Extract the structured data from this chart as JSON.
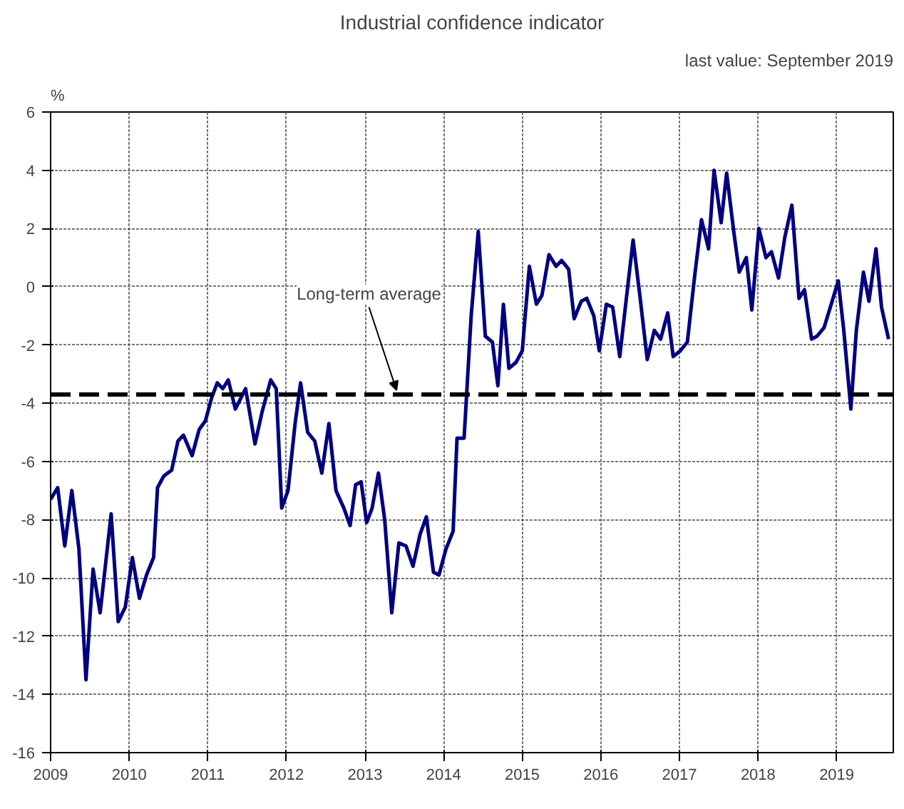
{
  "chart_data": {
    "type": "line",
    "title": "Industrial confidence indicator",
    "ylabel": "%",
    "annotations": [
      "last value: September 2019",
      {
        "text": "Long-term average",
        "x": 2013.4,
        "y": -3.7
      }
    ],
    "x": [
      2009.0,
      2009.09,
      2009.18,
      2009.27,
      2009.36,
      2009.45,
      2009.54,
      2009.63,
      2009.77,
      2009.86,
      2009.95,
      2010.04,
      2010.13,
      2010.22,
      2010.31,
      2010.36,
      2010.44,
      2010.54,
      2010.62,
      2010.69,
      2010.8,
      2010.89,
      2010.97,
      2011.05,
      2011.12,
      2011.19,
      2011.26,
      2011.35,
      2011.48,
      2011.6,
      2011.69,
      2011.8,
      2011.87,
      2011.94,
      2012.02,
      2012.11,
      2012.18,
      2012.27,
      2012.36,
      2012.45,
      2012.54,
      2012.63,
      2012.73,
      2012.81,
      2012.88,
      2012.95,
      2013.02,
      2013.09,
      2013.17,
      2013.25,
      2013.34,
      2013.43,
      2013.52,
      2013.61,
      2013.7,
      2013.78,
      2013.87,
      2013.94,
      2014.03,
      2014.12,
      2014.17,
      2014.26,
      2014.35,
      2014.44,
      2014.53,
      2014.62,
      2014.69,
      2014.76,
      2014.83,
      2014.92,
      2015.0,
      2015.09,
      2015.18,
      2015.25,
      2015.34,
      2015.43,
      2015.5,
      2015.59,
      2015.66,
      2015.75,
      2015.82,
      2015.91,
      2015.98,
      2016.07,
      2016.15,
      2016.24,
      2016.32,
      2016.41,
      2016.5,
      2016.59,
      2016.68,
      2016.76,
      2016.85,
      2016.92,
      2017.01,
      2017.1,
      2017.19,
      2017.28,
      2017.37,
      2017.44,
      2017.53,
      2017.6,
      2017.69,
      2017.76,
      2017.85,
      2017.92,
      2018.01,
      2018.1,
      2018.17,
      2018.26,
      2018.34,
      2018.43,
      2018.52,
      2018.59,
      2018.68,
      2018.75,
      2018.84,
      2018.93,
      2019.02,
      2019.09,
      2019.18,
      2019.25,
      2019.34,
      2019.41,
      2019.5,
      2019.57,
      2019.66
    ],
    "series": [
      {
        "color": "#000080",
        "values": [
          -7.3,
          -6.9,
          -8.9,
          -7.0,
          -9.0,
          -13.5,
          -9.7,
          -11.2,
          -7.8,
          -11.5,
          -11.0,
          -9.3,
          -10.7,
          -9.9,
          -9.3,
          -6.9,
          -6.5,
          -6.3,
          -5.3,
          -5.1,
          -5.8,
          -4.9,
          -4.6,
          -3.8,
          -3.3,
          -3.5,
          -3.2,
          -4.2,
          -3.5,
          -5.4,
          -4.3,
          -3.2,
          -3.5,
          -7.6,
          -7.0,
          -4.7,
          -3.3,
          -5.0,
          -5.3,
          -6.4,
          -4.7,
          -7.0,
          -7.6,
          -8.2,
          -6.8,
          -6.7,
          -8.1,
          -7.6,
          -6.4,
          -8.0,
          -11.2,
          -8.8,
          -8.9,
          -9.6,
          -8.5,
          -7.9,
          -9.8,
          -9.9,
          -9.0,
          -8.4,
          -5.2,
          -5.2,
          -1.0,
          1.9,
          -1.7,
          -1.9,
          -3.4,
          -0.6,
          -2.8,
          -2.6,
          -2.2,
          0.7,
          -0.6,
          -0.3,
          1.1,
          0.7,
          0.9,
          0.6,
          -1.1,
          -0.5,
          -0.4,
          -1.0,
          -2.2,
          -0.6,
          -0.7,
          -2.4,
          -0.5,
          1.6,
          -0.4,
          -2.5,
          -1.5,
          -1.8,
          -0.9,
          -2.4,
          -2.2,
          -1.9,
          0.3,
          2.3,
          1.3,
          4.0,
          2.2,
          3.9,
          1.9,
          0.5,
          1.0,
          -0.8,
          2.0,
          1.0,
          1.2,
          0.3,
          1.7,
          2.8,
          -0.4,
          -0.1,
          -1.8,
          -1.7,
          -1.4,
          -0.6,
          0.2,
          -1.5,
          -4.2,
          -1.5,
          0.5,
          -0.5,
          1.3,
          -0.7,
          -1.8
        ]
      }
    ],
    "ref_lines": [
      {
        "axis": "y",
        "value": -3.7,
        "color": "#000000",
        "line_style": "dashed"
      }
    ],
    "xlim": [
      2009,
      2019.72
    ],
    "xticks": [
      2009,
      2010,
      2011,
      2012,
      2013,
      2014,
      2015,
      2016,
      2017,
      2018,
      2019
    ],
    "ylim": [
      -16,
      6
    ],
    "yticks": [
      -16,
      -14,
      -12,
      -10,
      -8,
      -6,
      -4,
      -2,
      0,
      2,
      4,
      6
    ],
    "grid": true,
    "marker": "none",
    "line_style": "solid"
  }
}
